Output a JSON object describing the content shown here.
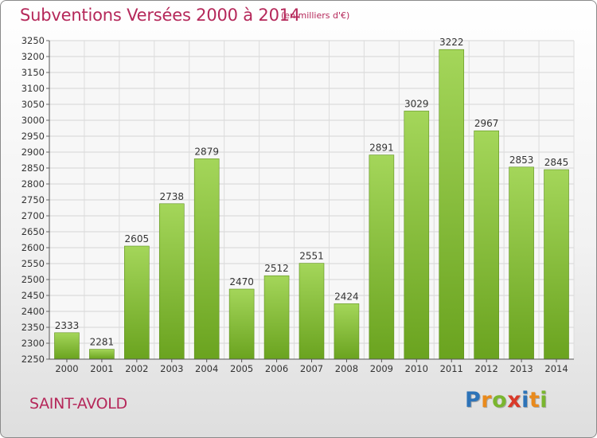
{
  "header": {
    "title": "Subventions Versées 2000 à 2014",
    "subtitle": "(en milliers d'€)"
  },
  "footer": {
    "commune": "SAINT-AVOLD",
    "brand": "Proxiti",
    "brand_letters": [
      "P",
      "r",
      "o",
      "x",
      "i",
      "t",
      "i"
    ],
    "brand_colors": [
      "#2d73b8",
      "#e98a1c",
      "#7ab62f",
      "#d93a2a",
      "#2d73b8",
      "#e98a1c",
      "#7ab62f"
    ]
  },
  "chart_data": {
    "type": "bar",
    "title": "Subventions Versées 2000 à 2014",
    "subtitle": "(en milliers d'€)",
    "xlabel": "",
    "ylabel": "",
    "categories": [
      "2000",
      "2001",
      "2002",
      "2003",
      "2004",
      "2005",
      "2006",
      "2007",
      "2008",
      "2009",
      "2010",
      "2011",
      "2012",
      "2013",
      "2014"
    ],
    "values": [
      2333,
      2281,
      2605,
      2738,
      2879,
      2470,
      2512,
      2551,
      2424,
      2891,
      3029,
      3222,
      2967,
      2853,
      2845
    ],
    "ylim": [
      2250,
      3250
    ],
    "yticks": [
      2250,
      2300,
      2350,
      2400,
      2450,
      2500,
      2550,
      2600,
      2650,
      2700,
      2750,
      2800,
      2850,
      2900,
      2950,
      3000,
      3050,
      3100,
      3150,
      3200,
      3250
    ],
    "grid": true,
    "legend": "none",
    "bar_color_top": "#a4d65a",
    "bar_color_bottom": "#6aa31f"
  }
}
